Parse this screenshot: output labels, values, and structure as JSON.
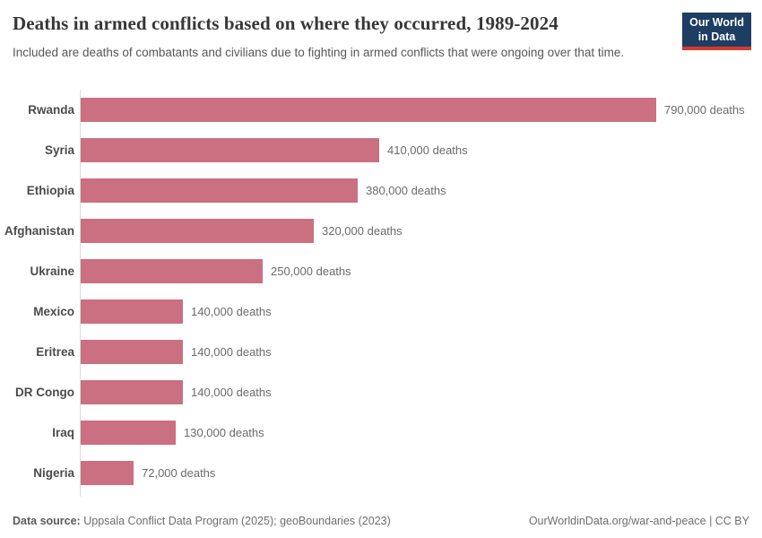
{
  "header": {
    "title": "Deaths in armed conflicts based on where they occurred, 1989-2024",
    "subtitle": "Included are deaths of combatants and civilians due to fighting in armed conflicts that were ongoing over that time.",
    "logo": {
      "line1": "Our World",
      "line2": "in Data"
    }
  },
  "chart_data": {
    "type": "bar",
    "orientation": "horizontal",
    "title": "Deaths in armed conflicts based on where they occurred, 1989-2024",
    "categories": [
      "Rwanda",
      "Syria",
      "Ethiopia",
      "Afghanistan",
      "Ukraine",
      "Mexico",
      "Eritrea",
      "DR Congo",
      "Iraq",
      "Nigeria"
    ],
    "values": [
      790000,
      410000,
      380000,
      320000,
      250000,
      140000,
      140000,
      140000,
      130000,
      72000
    ],
    "value_labels": [
      "790,000 deaths",
      "410,000 deaths",
      "380,000 deaths",
      "320,000 deaths",
      "250,000 deaths",
      "140,000 deaths",
      "140,000 deaths",
      "140,000 deaths",
      "130,000 deaths",
      "72,000 deaths"
    ],
    "xlim": [
      0,
      790000
    ],
    "grid": false,
    "legend": "none",
    "bar_color": "#ca7081"
  },
  "footer": {
    "datasource_label": "Data source:",
    "datasource_value": "Uppsala Conflict Data Program (2025); geoBoundaries (2023)",
    "right_note": "OurWorldinData.org/war-and-peace | CC BY"
  },
  "colors": {
    "bar": "#ca7081",
    "axis_line": "#dcdcdc",
    "logo_background": "#1d3d63",
    "logo_accent": "#d23b33",
    "title_text": "#373737",
    "subtitle_text": "#575757"
  }
}
